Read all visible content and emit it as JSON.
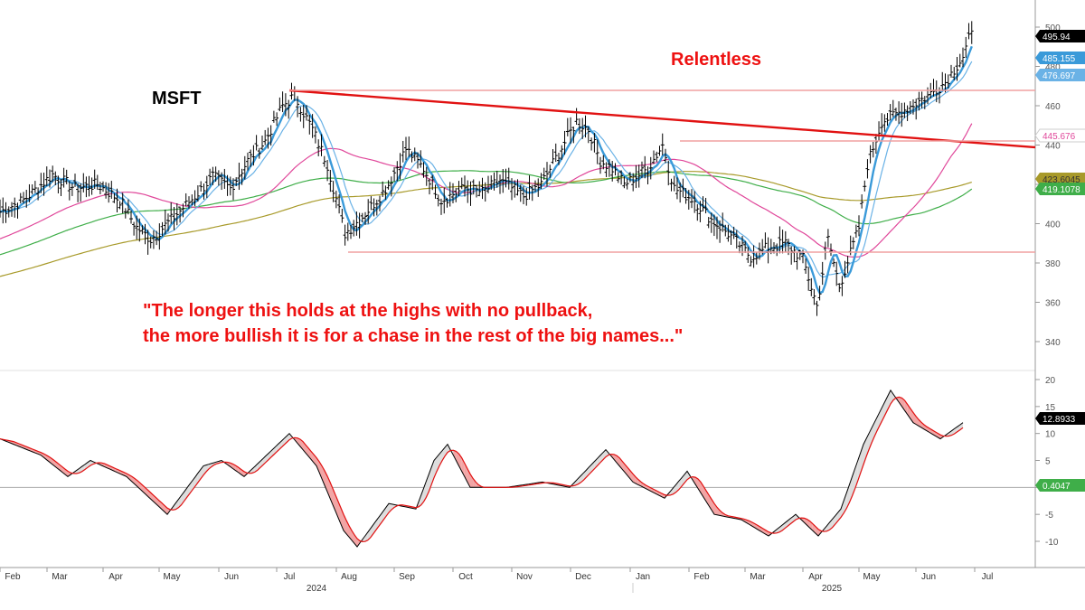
{
  "ticker": "MSFT",
  "headline": "Relentless",
  "quote_lines": [
    "\"The longer this holds at the highs with no pullback,",
    "the more bullish it is for a chase in the rest of the big names...\""
  ],
  "colors": {
    "annotation_red": "#e11111",
    "ma_fast": "#3a9ad9",
    "ma_slow_blue": "#6ab2e6",
    "ma_pink": "#e0479a",
    "ma_green": "#3fae49",
    "ma_olive": "#a89a2a",
    "osc_signal": "#e11111",
    "osc_fill_up": "#dddddd",
    "osc_fill_down": "#f2a5a5"
  },
  "chart_data": [
    {
      "type": "line",
      "name": "price",
      "ylim": [
        330,
        505
      ],
      "y_ticks": [
        "500",
        "480",
        "460",
        "440",
        "420",
        "400",
        "380",
        "360",
        "340"
      ],
      "x_labels": [
        "Feb",
        "Mar",
        "Apr",
        "May",
        "Jun",
        "Jul",
        "Aug",
        "Sep",
        "Oct",
        "Nov",
        "Dec",
        "Jan",
        "Feb",
        "Mar",
        "Apr",
        "May",
        "Jun",
        "Jul"
      ],
      "year_labels": [
        "2024",
        "2025"
      ],
      "price_path": [
        [
          "Feb",
          406
        ],
        [
          "Mar",
          420
        ],
        [
          "Apr",
          402
        ],
        [
          "Apr",
          392
        ],
        [
          "May",
          414
        ],
        [
          "Jun",
          430
        ],
        [
          "Jul",
          467
        ],
        [
          "Jul",
          445
        ],
        [
          "Aug",
          395
        ],
        [
          "Aug",
          405
        ],
        [
          "Sep",
          438
        ],
        [
          "Sep",
          412
        ],
        [
          "Oct",
          418
        ],
        [
          "Nov",
          415
        ],
        [
          "Nov",
          430
        ],
        [
          "Dec",
          452
        ],
        [
          "Dec",
          425
        ],
        [
          "Jan",
          420
        ],
        [
          "Jan",
          445
        ],
        [
          "Jan",
          418
        ],
        [
          "Feb",
          412
        ],
        [
          "Feb",
          398
        ],
        [
          "Mar",
          380
        ],
        [
          "Mar",
          390
        ],
        [
          "Apr",
          355
        ],
        [
          "Apr",
          392
        ],
        [
          "Apr",
          372
        ],
        [
          "May",
          430
        ],
        [
          "May",
          455
        ],
        [
          "Jun",
          470
        ],
        [
          "Jun",
          490
        ],
        [
          "Jun",
          498
        ]
      ],
      "value_labels": [
        {
          "value": "495.94",
          "bg": "#000000",
          "fg": "#ffffff"
        },
        {
          "value": "485.155",
          "bg": "#3a9ad9",
          "fg": "#ffffff"
        },
        {
          "value": "476.697",
          "bg": "#6ab2e6",
          "fg": "#ffffff"
        },
        {
          "value": "445.676",
          "bg": "#ffffff",
          "fg": "#e0479a"
        },
        {
          "value": "423.6045",
          "bg": "#a89a2a",
          "fg": "#333333"
        },
        {
          "value": "419.1078",
          "bg": "#3fae49",
          "fg": "#ffffff"
        }
      ]
    },
    {
      "type": "line",
      "name": "oscillator",
      "ylim": [
        -13,
        21
      ],
      "y_ticks": [
        "20",
        "15",
        "10",
        "5",
        "0",
        "-5",
        "-10"
      ],
      "value_labels": [
        {
          "value": "12.8933",
          "bg": "#000000",
          "fg": "#ffffff"
        },
        {
          "value": "0.4047",
          "bg": "#3fae49",
          "fg": "#ffffff"
        }
      ]
    }
  ]
}
